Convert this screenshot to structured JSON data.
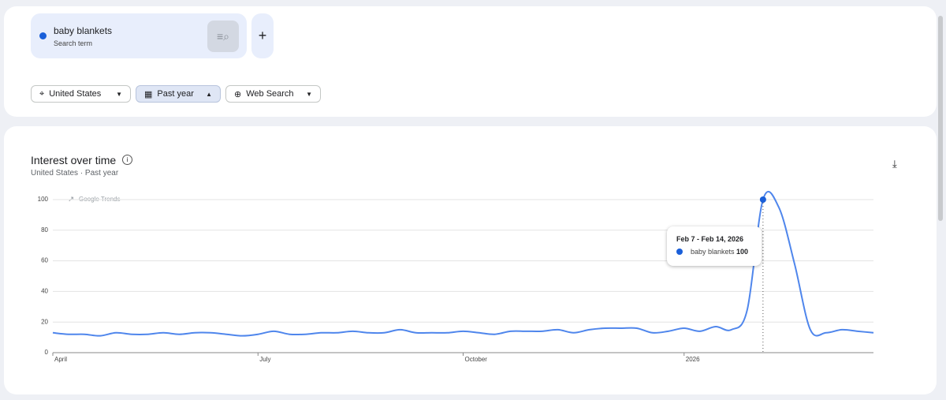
{
  "search": {
    "term": "baby blankets",
    "term_type": "Search term"
  },
  "filters": {
    "region": "United States",
    "period": "Past year",
    "property": "Web Search"
  },
  "panel": {
    "title": "Interest over time",
    "subtitle": "United States · Past year",
    "watermark": "Google Trends"
  },
  "tooltip": {
    "date": "Feb 7 - Feb 14, 2026"
  },
  "chart_data": {
    "type": "line",
    "categories": [
      "April",
      null,
      null,
      null,
      null,
      null,
      null,
      null,
      null,
      null,
      null,
      null,
      null,
      "July",
      null,
      null,
      null,
      null,
      null,
      null,
      null,
      null,
      null,
      null,
      null,
      null,
      "October",
      null,
      null,
      null,
      null,
      null,
      null,
      null,
      null,
      null,
      null,
      null,
      null,
      null,
      "2026",
      null,
      null,
      null,
      null,
      null,
      null,
      null,
      null,
      null,
      null,
      null,
      null
    ],
    "series": [
      {
        "name": "baby blankets",
        "color": "#4f86ec",
        "values": [
          13,
          12,
          12,
          11,
          13,
          12,
          12,
          13,
          12,
          13,
          13,
          12,
          11,
          12,
          14,
          12,
          12,
          13,
          13,
          14,
          13,
          13,
          15,
          13,
          13,
          13,
          14,
          13,
          12,
          14,
          14,
          14,
          15,
          13,
          15,
          16,
          16,
          16,
          13,
          14,
          16,
          14,
          17,
          15,
          28,
          100,
          95,
          58,
          15,
          13,
          15,
          14,
          13
        ]
      }
    ],
    "ylim": [
      0,
      100
    ],
    "yticks": [
      0,
      20,
      40,
      60,
      80,
      100
    ],
    "grid": true
  }
}
